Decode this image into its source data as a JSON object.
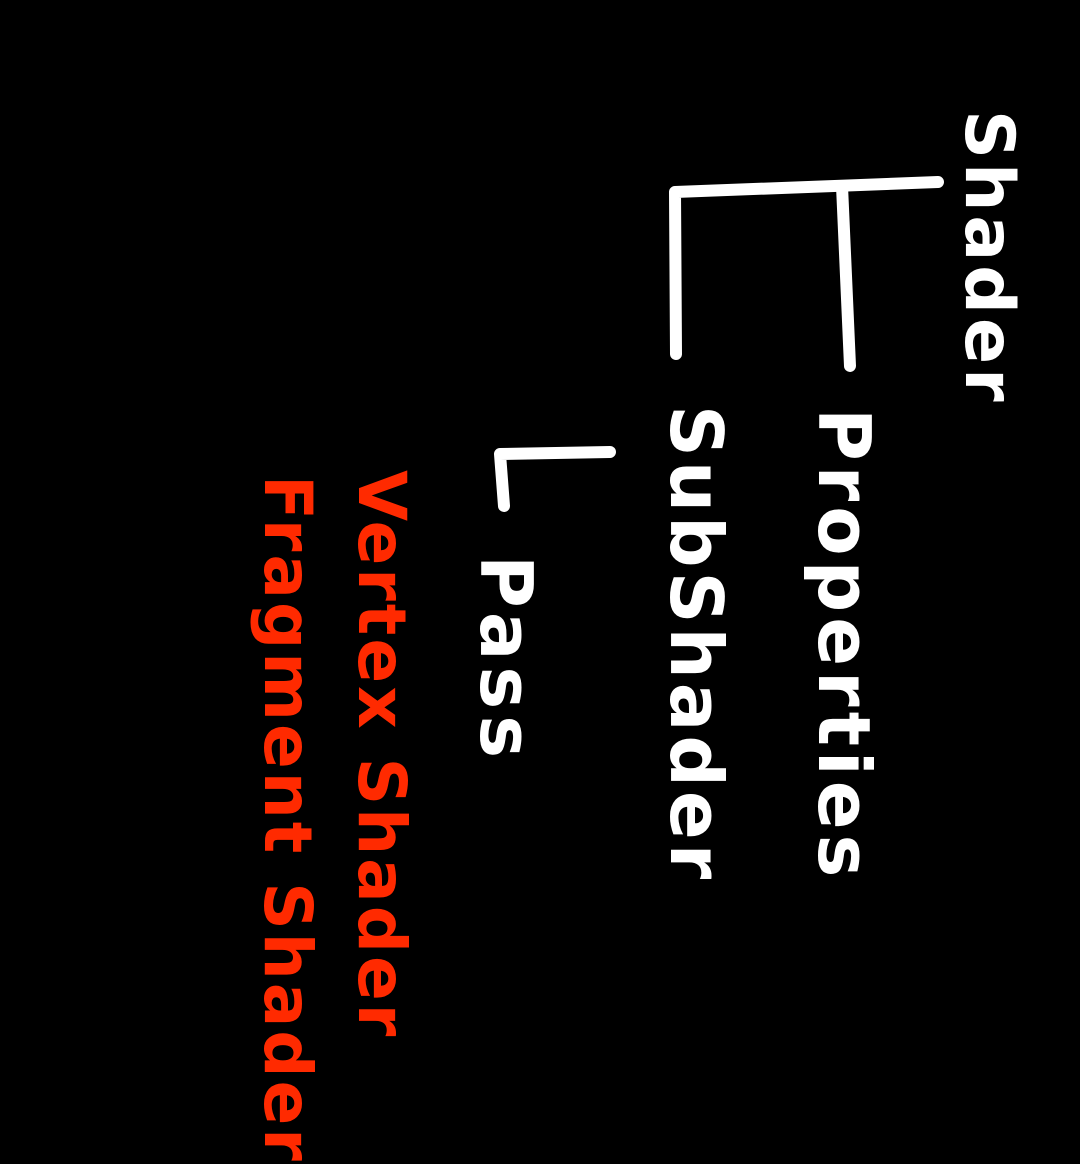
{
  "diagram": {
    "nodes": {
      "root": "Shader",
      "child_a": "Properties",
      "child_b": "SubShader",
      "grandchild": "Pass",
      "pass_item_1": "Vertex Shader",
      "pass_item_2": "Fragment Shader"
    },
    "colors": {
      "background": "#000000",
      "structure": "#ffffff",
      "highlight": "#ff2a00"
    }
  }
}
